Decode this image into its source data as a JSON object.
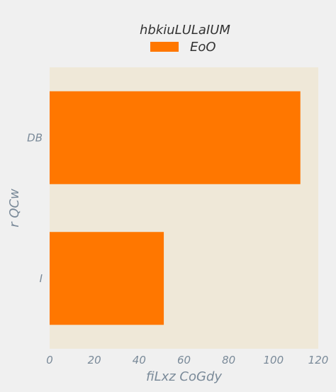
{
  "chart_data": {
    "type": "bar",
    "orientation": "horizontal",
    "categories": [
      "DB",
      "I"
    ],
    "series": [
      {
        "name": "EoO",
        "values": [
          112,
          51
        ],
        "color": "#ff7700"
      }
    ],
    "legend_title": "hbkiuLULaIUM",
    "xlabel": "fiLxz CoGdy",
    "ylabel": "r QCw",
    "xlim": [
      0,
      120
    ],
    "xticks": [
      0,
      20,
      40,
      60,
      80,
      100,
      120
    ],
    "grid": false,
    "legend_position": "top-center",
    "plot_background": "#efe8d8",
    "page_background": "#f0f0f0"
  }
}
